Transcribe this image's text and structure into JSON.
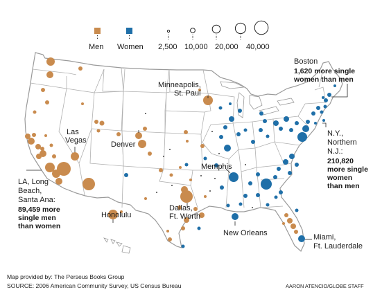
{
  "colors": {
    "men": "#c98b4e",
    "women": "#1f6fa8",
    "land": "#ffffff",
    "border": "#9a9a9a",
    "water": "#ffffff"
  },
  "legend": {
    "men_label": "Men",
    "women_label": "Women",
    "sizes": [
      "2,500",
      "10,000",
      "20,000",
      "40,000"
    ]
  },
  "annotations": {
    "boston_title": "Boston",
    "boston_l1": "1,620 more single",
    "boston_l2": "women than men",
    "minneapolis_l1": "Minneapolis,",
    "minneapolis_l2": "St. Paul",
    "lasvegas_l1": "Las",
    "lasvegas_l2": "Vegas",
    "denver": "Denver",
    "memphis": "Memphis",
    "ny_l1": "N.Y.,",
    "ny_l2": "Northern",
    "ny_l3": "N.J.:",
    "ny_l4": "210,820",
    "ny_l5": "more single",
    "ny_l6": "women",
    "ny_l7": "than men",
    "la_l1": "LA, Long",
    "la_l2": "Beach,",
    "la_l3": "Santa Ana:",
    "la_l4": "89,459 more",
    "la_l5": "single men",
    "la_l6": "than women",
    "dallas_l1": "Dallas,",
    "dallas_l2": "Ft. Worth",
    "honolulu": "Honolulu",
    "neworleans": "New Orleans",
    "miami_l1": "Miami,",
    "miami_l2": "Ft. Lauderdale"
  },
  "credits": {
    "provided": "Map provided by: The Perseus Books Group",
    "source": "SOURCE: 2006 American Community Survey, US Census Bureau",
    "staff": "AARON ATENCIO/GLOBE STAFF"
  }
}
